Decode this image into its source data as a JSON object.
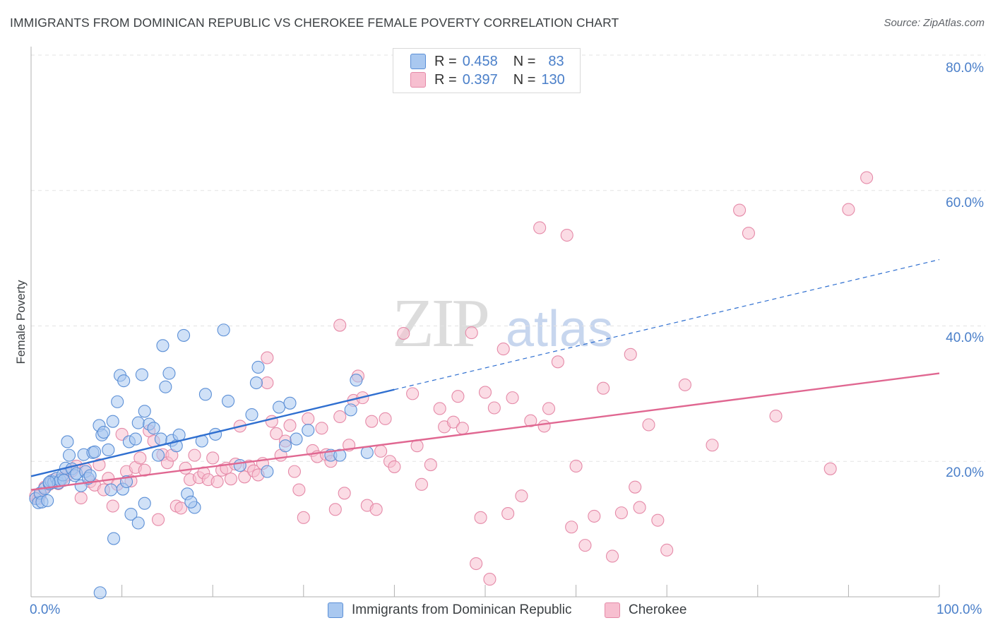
{
  "title": "IMMIGRANTS FROM DOMINICAN REPUBLIC VS CHEROKEE FEMALE POVERTY CORRELATION CHART",
  "source": "Source: ZipAtlas.com",
  "colors": {
    "blue_fill": "#a9c8f0",
    "blue_stroke": "#5b8fd6",
    "blue_line": "#2f6fd0",
    "pink_fill": "#f7bfd0",
    "pink_stroke": "#e58aa8",
    "pink_line": "#e06791",
    "grid": "#e3e3e3",
    "axis_text": "#4a7fc9"
  },
  "legend": {
    "rows": [
      {
        "r_label": "R =",
        "r_value": "0.458",
        "n_label": "N =",
        "n_value": "83",
        "color_key": "blue"
      },
      {
        "r_label": "R =",
        "r_value": "0.397",
        "n_label": "N =",
        "n_value": "130",
        "color_key": "pink"
      }
    ]
  },
  "bottom_legend": {
    "series1": "Immigrants from Dominican Republic",
    "series2": "Cherokee"
  },
  "chart_data": {
    "type": "scatter",
    "title": "IMMIGRANTS FROM DOMINICAN REPUBLIC VS CHEROKEE FEMALE POVERTY CORRELATION CHART",
    "xlabel": "",
    "ylabel": "Female Poverty",
    "xlim": [
      0,
      100
    ],
    "ylim": [
      0,
      80
    ],
    "x_tick_labels": [
      "0.0%",
      "100.0%"
    ],
    "y_tick_labels": [
      "20.0%",
      "40.0%",
      "60.0%",
      "80.0%"
    ],
    "y_tick_values": [
      20,
      40,
      60,
      80
    ],
    "grid": true,
    "legend_position": "top-center",
    "series": [
      {
        "name": "Immigrants from Dominican Republic",
        "color_key": "blue",
        "R": 0.458,
        "N": 83,
        "trend": {
          "x0": 0,
          "y0": 17.8,
          "x1": 40,
          "y1": 30.6,
          "dash_to_x": 100,
          "dash_to_y": 49.8
        },
        "points": [
          [
            0.5,
            14.5
          ],
          [
            0.8,
            13.9
          ],
          [
            1.0,
            15.3
          ],
          [
            1.2,
            14.0
          ],
          [
            1.5,
            16.0
          ],
          [
            1.8,
            14.2
          ],
          [
            2.0,
            16.7
          ],
          [
            2.2,
            17.1
          ],
          [
            2.5,
            16.9
          ],
          [
            2.8,
            17.5
          ],
          [
            3.0,
            16.8
          ],
          [
            3.2,
            17.2
          ],
          [
            3.5,
            18.0
          ],
          [
            3.8,
            19.0
          ],
          [
            4.0,
            22.9
          ],
          [
            4.2,
            20.9
          ],
          [
            4.5,
            18.9
          ],
          [
            4.8,
            17.9
          ],
          [
            5.0,
            18.2
          ],
          [
            5.5,
            16.4
          ],
          [
            5.8,
            21.0
          ],
          [
            6.0,
            18.5
          ],
          [
            6.3,
            17.5
          ],
          [
            6.8,
            21.3
          ],
          [
            7.0,
            21.4
          ],
          [
            7.5,
            25.3
          ],
          [
            7.8,
            23.9
          ],
          [
            8.0,
            24.3
          ],
          [
            8.5,
            21.7
          ],
          [
            9.0,
            25.9
          ],
          [
            9.5,
            28.8
          ],
          [
            9.8,
            32.7
          ],
          [
            10.2,
            31.9
          ],
          [
            10.8,
            22.9
          ],
          [
            11.5,
            23.3
          ],
          [
            11.8,
            25.7
          ],
          [
            12.2,
            32.8
          ],
          [
            12.5,
            27.4
          ],
          [
            13.0,
            25.5
          ],
          [
            13.5,
            24.9
          ],
          [
            14.0,
            20.9
          ],
          [
            14.3,
            23.3
          ],
          [
            14.5,
            37.1
          ],
          [
            14.8,
            31.0
          ],
          [
            15.2,
            33.0
          ],
          [
            15.5,
            23.1
          ],
          [
            16.0,
            22.3
          ],
          [
            16.3,
            23.9
          ],
          [
            16.8,
            38.6
          ],
          [
            17.2,
            15.2
          ],
          [
            18.0,
            13.2
          ],
          [
            18.8,
            23.0
          ],
          [
            19.2,
            29.9
          ],
          [
            20.3,
            24.0
          ],
          [
            21.2,
            39.4
          ],
          [
            21.7,
            28.9
          ],
          [
            23.0,
            19.4
          ],
          [
            24.3,
            26.9
          ],
          [
            24.8,
            31.6
          ],
          [
            25.0,
            33.9
          ],
          [
            26.0,
            18.5
          ],
          [
            27.3,
            28.0
          ],
          [
            28.0,
            22.3
          ],
          [
            28.5,
            28.6
          ],
          [
            29.2,
            23.3
          ],
          [
            30.5,
            24.6
          ],
          [
            33.0,
            20.9
          ],
          [
            34.0,
            20.9
          ],
          [
            35.2,
            27.6
          ],
          [
            35.8,
            32.0
          ],
          [
            37.0,
            21.3
          ],
          [
            2.0,
            16.9
          ],
          [
            3.6,
            17.2
          ],
          [
            6.5,
            17.9
          ],
          [
            8.8,
            15.8
          ],
          [
            10.1,
            15.9
          ],
          [
            11.0,
            12.2
          ],
          [
            11.8,
            10.9
          ],
          [
            12.5,
            13.8
          ],
          [
            17.6,
            14.0
          ],
          [
            9.1,
            8.6
          ],
          [
            7.6,
            0.6
          ],
          [
            10.5,
            17.0
          ]
        ]
      },
      {
        "name": "Cherokee",
        "color_key": "pink",
        "R": 0.397,
        "N": 130,
        "trend": {
          "x0": 0,
          "y0": 15.8,
          "x1": 100,
          "y1": 33.0
        },
        "points": [
          [
            0.5,
            14.9
          ],
          [
            0.8,
            14.5
          ],
          [
            1.0,
            15.0
          ],
          [
            1.5,
            16.2
          ],
          [
            2.0,
            16.6
          ],
          [
            2.5,
            17.3
          ],
          [
            3.0,
            16.7
          ],
          [
            3.5,
            17.5
          ],
          [
            4.0,
            18.0
          ],
          [
            4.5,
            18.6
          ],
          [
            5.0,
            19.3
          ],
          [
            5.5,
            14.6
          ],
          [
            6.0,
            18.9
          ],
          [
            6.5,
            17.0
          ],
          [
            7.0,
            16.5
          ],
          [
            7.5,
            19.5
          ],
          [
            8.0,
            15.8
          ],
          [
            8.5,
            17.5
          ],
          [
            9.0,
            13.4
          ],
          [
            9.5,
            16.6
          ],
          [
            10.0,
            24.0
          ],
          [
            10.5,
            18.5
          ],
          [
            11.0,
            17.1
          ],
          [
            11.5,
            19.1
          ],
          [
            12.0,
            20.5
          ],
          [
            12.5,
            18.7
          ],
          [
            13.0,
            24.5
          ],
          [
            13.5,
            23.0
          ],
          [
            14.0,
            11.4
          ],
          [
            14.5,
            21.0
          ],
          [
            15.0,
            19.8
          ],
          [
            15.5,
            20.9
          ],
          [
            16.0,
            13.4
          ],
          [
            16.5,
            13.1
          ],
          [
            17.0,
            19.0
          ],
          [
            17.5,
            17.3
          ],
          [
            18.0,
            20.9
          ],
          [
            18.5,
            17.6
          ],
          [
            19.0,
            18.3
          ],
          [
            19.5,
            17.3
          ],
          [
            20.0,
            20.5
          ],
          [
            20.5,
            17.0
          ],
          [
            21.0,
            18.7
          ],
          [
            21.5,
            19.0
          ],
          [
            22.0,
            17.4
          ],
          [
            22.5,
            19.6
          ],
          [
            23.0,
            25.2
          ],
          [
            23.5,
            17.7
          ],
          [
            24.0,
            19.3
          ],
          [
            24.5,
            18.6
          ],
          [
            25.0,
            18.0
          ],
          [
            25.5,
            19.7
          ],
          [
            26.0,
            31.6
          ],
          [
            26.5,
            25.9
          ],
          [
            27.0,
            24.1
          ],
          [
            27.5,
            20.9
          ],
          [
            28.0,
            23.0
          ],
          [
            28.5,
            25.3
          ],
          [
            29.0,
            18.5
          ],
          [
            29.5,
            15.8
          ],
          [
            30.0,
            11.7
          ],
          [
            30.5,
            26.3
          ],
          [
            31.0,
            21.6
          ],
          [
            31.5,
            20.7
          ],
          [
            32.0,
            24.9
          ],
          [
            32.5,
            21.0
          ],
          [
            33.0,
            20.0
          ],
          [
            33.5,
            12.9
          ],
          [
            34.0,
            26.6
          ],
          [
            34.5,
            15.3
          ],
          [
            35.0,
            22.4
          ],
          [
            35.5,
            29.0
          ],
          [
            36.0,
            32.6
          ],
          [
            36.5,
            29.4
          ],
          [
            37.0,
            13.5
          ],
          [
            37.5,
            25.9
          ],
          [
            38.0,
            12.9
          ],
          [
            38.5,
            21.5
          ],
          [
            39.0,
            26.3
          ],
          [
            39.5,
            20.0
          ],
          [
            40.0,
            19.2
          ],
          [
            41.0,
            38.9
          ],
          [
            42.0,
            30.0
          ],
          [
            42.5,
            22.3
          ],
          [
            43.0,
            16.6
          ],
          [
            44.0,
            19.5
          ],
          [
            45.0,
            27.8
          ],
          [
            45.5,
            25.1
          ],
          [
            46.5,
            25.8
          ],
          [
            47.0,
            29.6
          ],
          [
            47.5,
            24.9
          ],
          [
            48.5,
            39.0
          ],
          [
            49.0,
            4.9
          ],
          [
            49.5,
            11.7
          ],
          [
            50.0,
            30.2
          ],
          [
            50.5,
            2.6
          ],
          [
            51.0,
            27.9
          ],
          [
            52.0,
            36.6
          ],
          [
            52.5,
            12.3
          ],
          [
            53.0,
            29.4
          ],
          [
            54.0,
            14.9
          ],
          [
            55.0,
            26.0
          ],
          [
            56.0,
            54.5
          ],
          [
            56.5,
            25.2
          ],
          [
            57.0,
            27.8
          ],
          [
            58.0,
            34.7
          ],
          [
            59.0,
            53.4
          ],
          [
            59.5,
            10.3
          ],
          [
            60.0,
            19.3
          ],
          [
            61.0,
            7.6
          ],
          [
            62.0,
            11.9
          ],
          [
            63.0,
            30.8
          ],
          [
            64.0,
            6.0
          ],
          [
            65.0,
            12.4
          ],
          [
            66.0,
            35.8
          ],
          [
            66.5,
            16.2
          ],
          [
            67.0,
            13.2
          ],
          [
            68.0,
            25.4
          ],
          [
            69.0,
            11.3
          ],
          [
            70.0,
            6.9
          ],
          [
            72.0,
            31.3
          ],
          [
            75.0,
            22.4
          ],
          [
            78.0,
            57.1
          ],
          [
            79.0,
            53.7
          ],
          [
            82.0,
            26.7
          ],
          [
            88.0,
            18.9
          ],
          [
            90.0,
            57.2
          ],
          [
            92.0,
            61.9
          ],
          [
            26.0,
            35.3
          ],
          [
            34.0,
            40.1
          ]
        ]
      }
    ]
  }
}
